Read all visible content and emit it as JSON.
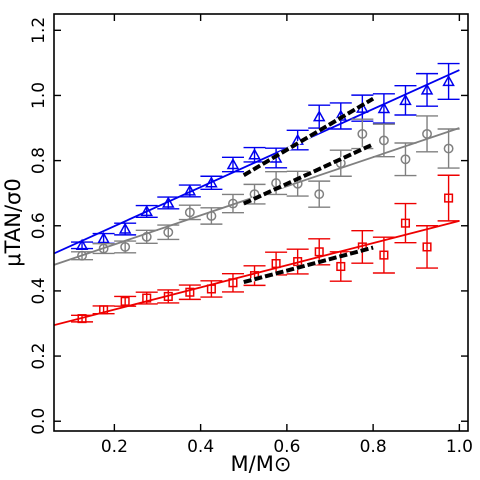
{
  "chart_data": {
    "type": "scatter",
    "title": "",
    "xlabel": "M/M⊙",
    "ylabel": "μTAN/σ0",
    "xlim": [
      0.06,
      1.02
    ],
    "ylim": [
      -0.03,
      1.25
    ],
    "xticks": [
      0.2,
      0.4,
      0.6,
      0.8,
      1.0
    ],
    "xticklabels": [
      "0.2",
      "0.4",
      "0.6",
      "0.8",
      "1.0"
    ],
    "yticks": [
      0.0,
      0.2,
      0.4,
      0.6,
      0.8,
      1.0,
      1.2
    ],
    "yticklabels": [
      "0.0",
      "0.2",
      "0.4",
      "0.6",
      "0.8",
      "1.0",
      "1.2"
    ],
    "grid": false,
    "legend": "none",
    "series": [
      {
        "marker": "triangle",
        "color": "#0000ee",
        "points": [
          {
            "x": 0.125,
            "y": 0.54,
            "err": 0.01
          },
          {
            "x": 0.175,
            "y": 0.561,
            "err": 0.015
          },
          {
            "x": 0.225,
            "y": 0.59,
            "err": 0.018
          },
          {
            "x": 0.275,
            "y": 0.644,
            "err": 0.018
          },
          {
            "x": 0.325,
            "y": 0.67,
            "err": 0.018
          },
          {
            "x": 0.375,
            "y": 0.707,
            "err": 0.018
          },
          {
            "x": 0.425,
            "y": 0.732,
            "err": 0.02
          },
          {
            "x": 0.475,
            "y": 0.788,
            "err": 0.022
          },
          {
            "x": 0.525,
            "y": 0.818,
            "err": 0.022
          },
          {
            "x": 0.575,
            "y": 0.808,
            "err": 0.03
          },
          {
            "x": 0.625,
            "y": 0.863,
            "err": 0.03
          },
          {
            "x": 0.675,
            "y": 0.935,
            "err": 0.035
          },
          {
            "x": 0.725,
            "y": 0.937,
            "err": 0.04
          },
          {
            "x": 0.775,
            "y": 0.961,
            "err": 0.04
          },
          {
            "x": 0.825,
            "y": 0.96,
            "err": 0.045
          },
          {
            "x": 0.875,
            "y": 0.985,
            "err": 0.045
          },
          {
            "x": 0.925,
            "y": 1.017,
            "err": 0.05
          },
          {
            "x": 0.975,
            "y": 1.043,
            "err": 0.055
          }
        ],
        "fit": {
          "x": [
            0.06,
            1.0
          ],
          "y": [
            0.515,
            1.078
          ]
        },
        "dashed_fit": {
          "x": [
            0.5,
            0.8
          ],
          "y": [
            0.755,
            0.99
          ]
        }
      },
      {
        "marker": "circle",
        "color": "#808080",
        "points": [
          {
            "x": 0.125,
            "y": 0.508,
            "err": 0.012
          },
          {
            "x": 0.175,
            "y": 0.53,
            "err": 0.015
          },
          {
            "x": 0.225,
            "y": 0.535,
            "err": 0.018
          },
          {
            "x": 0.275,
            "y": 0.566,
            "err": 0.02
          },
          {
            "x": 0.325,
            "y": 0.58,
            "err": 0.022
          },
          {
            "x": 0.375,
            "y": 0.641,
            "err": 0.022
          },
          {
            "x": 0.425,
            "y": 0.63,
            "err": 0.025
          },
          {
            "x": 0.475,
            "y": 0.668,
            "err": 0.028
          },
          {
            "x": 0.525,
            "y": 0.697,
            "err": 0.03
          },
          {
            "x": 0.575,
            "y": 0.731,
            "err": 0.035
          },
          {
            "x": 0.625,
            "y": 0.729,
            "err": 0.038
          },
          {
            "x": 0.675,
            "y": 0.697,
            "err": 0.04
          },
          {
            "x": 0.725,
            "y": 0.792,
            "err": 0.04
          },
          {
            "x": 0.775,
            "y": 0.882,
            "err": 0.045
          },
          {
            "x": 0.825,
            "y": 0.862,
            "err": 0.05
          },
          {
            "x": 0.875,
            "y": 0.804,
            "err": 0.05
          },
          {
            "x": 0.925,
            "y": 0.882,
            "err": 0.055
          },
          {
            "x": 0.975,
            "y": 0.837,
            "err": 0.06
          }
        ],
        "fit": {
          "x": [
            0.06,
            1.0
          ],
          "y": [
            0.48,
            0.9
          ]
        },
        "dashed_fit": {
          "x": [
            0.5,
            0.8
          ],
          "y": [
            0.668,
            0.85
          ]
        }
      },
      {
        "marker": "square",
        "color": "#ee0000",
        "points": [
          {
            "x": 0.125,
            "y": 0.315,
            "err": 0.01
          },
          {
            "x": 0.175,
            "y": 0.342,
            "err": 0.012
          },
          {
            "x": 0.225,
            "y": 0.368,
            "err": 0.015
          },
          {
            "x": 0.275,
            "y": 0.378,
            "err": 0.018
          },
          {
            "x": 0.325,
            "y": 0.383,
            "err": 0.02
          },
          {
            "x": 0.375,
            "y": 0.396,
            "err": 0.022
          },
          {
            "x": 0.425,
            "y": 0.406,
            "err": 0.025
          },
          {
            "x": 0.475,
            "y": 0.425,
            "err": 0.028
          },
          {
            "x": 0.525,
            "y": 0.447,
            "err": 0.03
          },
          {
            "x": 0.575,
            "y": 0.484,
            "err": 0.035
          },
          {
            "x": 0.625,
            "y": 0.49,
            "err": 0.038
          },
          {
            "x": 0.675,
            "y": 0.52,
            "err": 0.04
          },
          {
            "x": 0.725,
            "y": 0.475,
            "err": 0.045
          },
          {
            "x": 0.775,
            "y": 0.535,
            "err": 0.05
          },
          {
            "x": 0.825,
            "y": 0.51,
            "err": 0.055
          },
          {
            "x": 0.875,
            "y": 0.608,
            "err": 0.06
          },
          {
            "x": 0.925,
            "y": 0.535,
            "err": 0.065
          },
          {
            "x": 0.975,
            "y": 0.685,
            "err": 0.07
          }
        ],
        "fit": {
          "x": [
            0.06,
            1.0
          ],
          "y": [
            0.295,
            0.615
          ]
        },
        "dashed_fit": {
          "x": [
            0.5,
            0.8
          ],
          "y": [
            0.427,
            0.533
          ]
        }
      }
    ]
  }
}
